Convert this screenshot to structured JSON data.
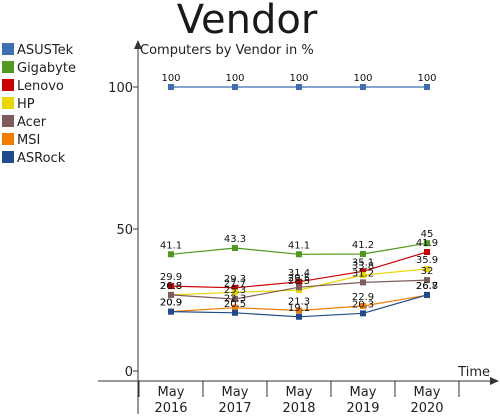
{
  "chart_data": {
    "type": "line",
    "title": "Vendor",
    "subtitle": "Computers by Vendor in %",
    "xlabel": "Time",
    "ylabel": "",
    "categories": [
      {
        "month": "May",
        "year": "2016"
      },
      {
        "month": "May",
        "year": "2017"
      },
      {
        "month": "May",
        "year": "2018"
      },
      {
        "month": "May",
        "year": "2019"
      },
      {
        "month": "May",
        "year": "2020"
      }
    ],
    "y_ticks": [
      "0",
      "50",
      "100"
    ],
    "ylim": [
      0,
      110
    ],
    "legend_position": "left",
    "series": [
      {
        "name": "ASUSTek",
        "color": "#3c6eb4",
        "values": [
          100,
          100,
          100,
          100,
          100
        ],
        "labels": [
          "100",
          "100",
          "100",
          "100",
          "100"
        ]
      },
      {
        "name": "Gigabyte",
        "color": "#4f9a1e",
        "values": [
          41.1,
          43.3,
          41.1,
          41.2,
          45
        ],
        "labels": [
          "41.1",
          "43.3",
          "41.1",
          "41.2",
          "45"
        ]
      },
      {
        "name": "Lenovo",
        "color": "#cc0000",
        "values": [
          29.9,
          29.3,
          31.4,
          35.1,
          41.9
        ],
        "labels": [
          "29.9",
          "29.3",
          "31.4",
          "35.1",
          "41.9"
        ]
      },
      {
        "name": "HP",
        "color": "#e8d800",
        "values": [
          26.8,
          27.7,
          28.5,
          33.8,
          35.9
        ],
        "labels": [
          "26.8",
          "27.7",
          "28.5",
          "33.8",
          "35.9"
        ]
      },
      {
        "name": "Acer",
        "color": "#7f5c5c",
        "values": [
          26.8,
          25.3,
          29.5,
          31.2,
          32
        ],
        "labels": [
          "26.8",
          "25.3",
          "29.5",
          "31.2",
          "32"
        ]
      },
      {
        "name": "MSI",
        "color": "#f07d00",
        "values": [
          20.9,
          22.3,
          21.3,
          22.9,
          26.7
        ],
        "labels": [
          "20.9",
          "22.3",
          "21.3",
          "22.9",
          "26.7"
        ]
      },
      {
        "name": "ASRock",
        "color": "#1f4b8c",
        "values": [
          20.9,
          20.5,
          19.1,
          20.3,
          26.8
        ],
        "labels": [
          "20.9",
          "20.5",
          "19.1",
          "20.3",
          "26.8"
        ]
      }
    ]
  }
}
